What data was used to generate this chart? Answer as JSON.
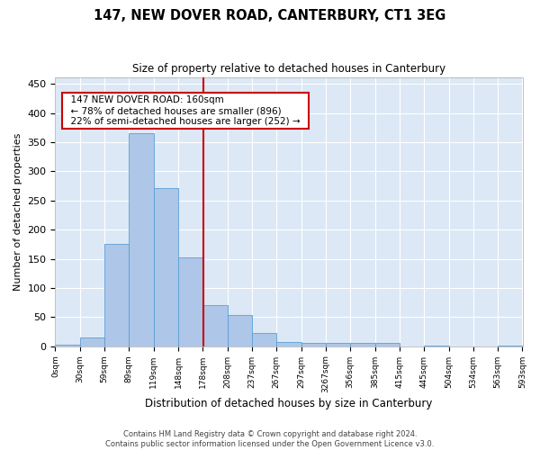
{
  "title": "147, NEW DOVER ROAD, CANTERBURY, CT1 3EG",
  "subtitle": "Size of property relative to detached houses in Canterbury",
  "xlabel": "Distribution of detached houses by size in Canterbury",
  "ylabel": "Number of detached properties",
  "footer_line1": "Contains HM Land Registry data © Crown copyright and database right 2024.",
  "footer_line2": "Contains public sector information licensed under the Open Government Licence v3.0.",
  "annotation_line1": "147 NEW DOVER ROAD: 160sqm",
  "annotation_line2": "← 78% of detached houses are smaller (896)",
  "annotation_line3": "22% of semi-detached houses are larger (252) →",
  "bar_color": "#aec6e8",
  "bar_edge_color": "#5a9fd4",
  "vline_color": "#cc0000",
  "background_color": "#dce8f5",
  "values": [
    2,
    15,
    175,
    365,
    272,
    152,
    70,
    53,
    22,
    8,
    5,
    5,
    5,
    6,
    0,
    1,
    0,
    0,
    1
  ],
  "tick_labels": [
    "0sqm",
    "30sqm",
    "59sqm",
    "89sqm",
    "119sqm",
    "148sqm",
    "178sqm",
    "208sqm",
    "237sqm",
    "267sqm",
    "297sqm",
    "3267sqm",
    "356sqm",
    "385sqm",
    "415sqm",
    "445sqm",
    "504sqm",
    "534sqm",
    "563sqm",
    "593sqm"
  ],
  "vline_x": 5.53,
  "ylim": [
    0,
    462
  ],
  "yticks": [
    0,
    50,
    100,
    150,
    200,
    250,
    300,
    350,
    400,
    450
  ]
}
